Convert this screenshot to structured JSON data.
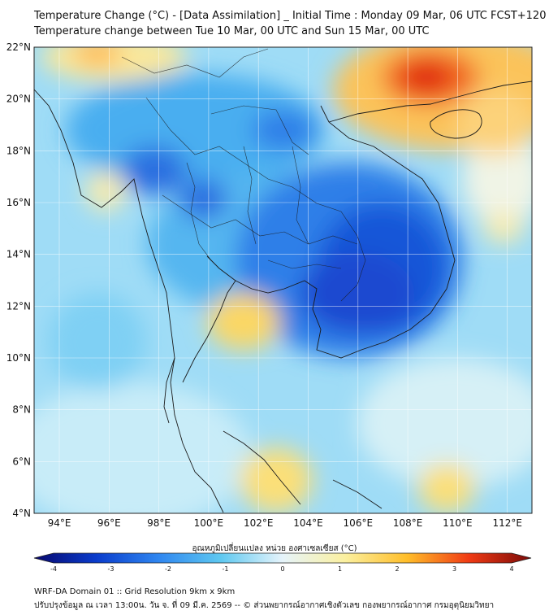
{
  "title": {
    "line1": "Temperature Change (°C) - [Data Assimilation] _ Initial Time : Monday 09 Mar, 06 UTC FCST+120",
    "line2": "Temperature change between Tue 10 Mar, 00 UTC and Sun 15 Mar, 00 UTC"
  },
  "axes": {
    "lat_labels": [
      "22°N",
      "20°N",
      "18°N",
      "16°N",
      "14°N",
      "12°N",
      "10°N",
      "8°N",
      "6°N",
      "4°N"
    ],
    "lon_labels": [
      "94°E",
      "96°E",
      "98°E",
      "100°E",
      "102°E",
      "104°E",
      "106°E",
      "108°E",
      "110°E",
      "112°E"
    ]
  },
  "colorbar": {
    "label": "อุณหภูมิเปลี่ยนแปลง หน่วย องศาเซลเซียส (°C)",
    "ticks": [
      "-4",
      "-3",
      "-2",
      "-1",
      "0",
      "1",
      "2",
      "3",
      "4"
    ],
    "range": [
      -4,
      4
    ],
    "colors": [
      "#08086e",
      "#0a3ccc",
      "#2f86f0",
      "#5ec8f0",
      "#e6f4fb",
      "#fbf0a0",
      "#ffbe2a",
      "#f03a14",
      "#7a0a08"
    ]
  },
  "footer": {
    "line1": "WRF-DA Domain 01 :: Grid Resolution 9km x 9km",
    "line2": "ปรับปรุงข้อมูล ณ เวลา 13:00น. วัน จ. ที่ 09 มี.ค. 2569 -- © ส่วนพยากรณ์อากาศเชิงตัวเลข กองพยากรณ์อากาศ กรมอุตุนิยมวิทยา"
  }
}
